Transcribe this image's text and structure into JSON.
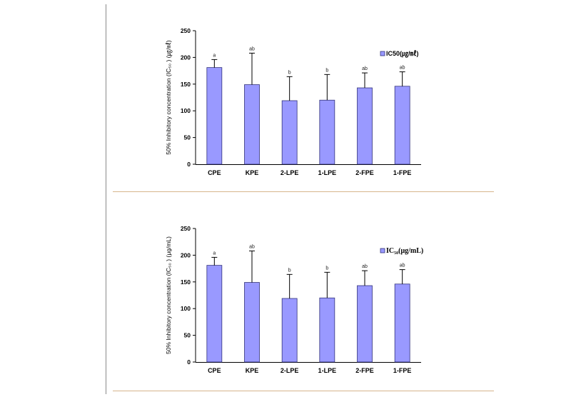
{
  "chart_data": [
    {
      "type": "bar",
      "categories": [
        "CPE",
        "KPE",
        "2-LPE",
        "1-LPE",
        "2-FPE",
        "1-FPE"
      ],
      "series": [
        {
          "name": "IC50(㎍/㎖)",
          "values": [
            181,
            149,
            119,
            120,
            143,
            146
          ],
          "error_upper": [
            15,
            59,
            45,
            48,
            28,
            27
          ],
          "labels": [
            "a",
            "ab",
            "b",
            "b",
            "ab",
            "ab"
          ]
        }
      ],
      "ylabel": "50% Inhibitory concentration (IC₅₀ ) (㎍/㎖)",
      "ylim": [
        0,
        250
      ],
      "yticks": [
        0,
        50,
        100,
        150,
        200,
        250
      ],
      "legend": "right",
      "bar_color": "#9999ff",
      "bar_edge_color": "#33337a",
      "grid": false
    },
    {
      "type": "bar",
      "categories": [
        "CPE",
        "KPE",
        "2-LPE",
        "1-LPE",
        "2-FPE",
        "1-FPE"
      ],
      "series": [
        {
          "name": "IC₅₀(μg/mL)",
          "values": [
            181,
            149,
            119,
            120,
            143,
            146
          ],
          "error_upper": [
            15,
            59,
            45,
            48,
            28,
            27
          ],
          "labels": [
            "a",
            "ab",
            "b",
            "b",
            "ab",
            "ab"
          ]
        }
      ],
      "ylabel": "50% Inhibitory concentration (IC₅₀ ) (μg/mL)",
      "ylim": [
        0,
        250
      ],
      "yticks": [
        0,
        50,
        100,
        150,
        200,
        250
      ],
      "legend": "right",
      "bar_color": "#9999ff",
      "bar_edge_color": "#33337a",
      "grid": false
    }
  ]
}
